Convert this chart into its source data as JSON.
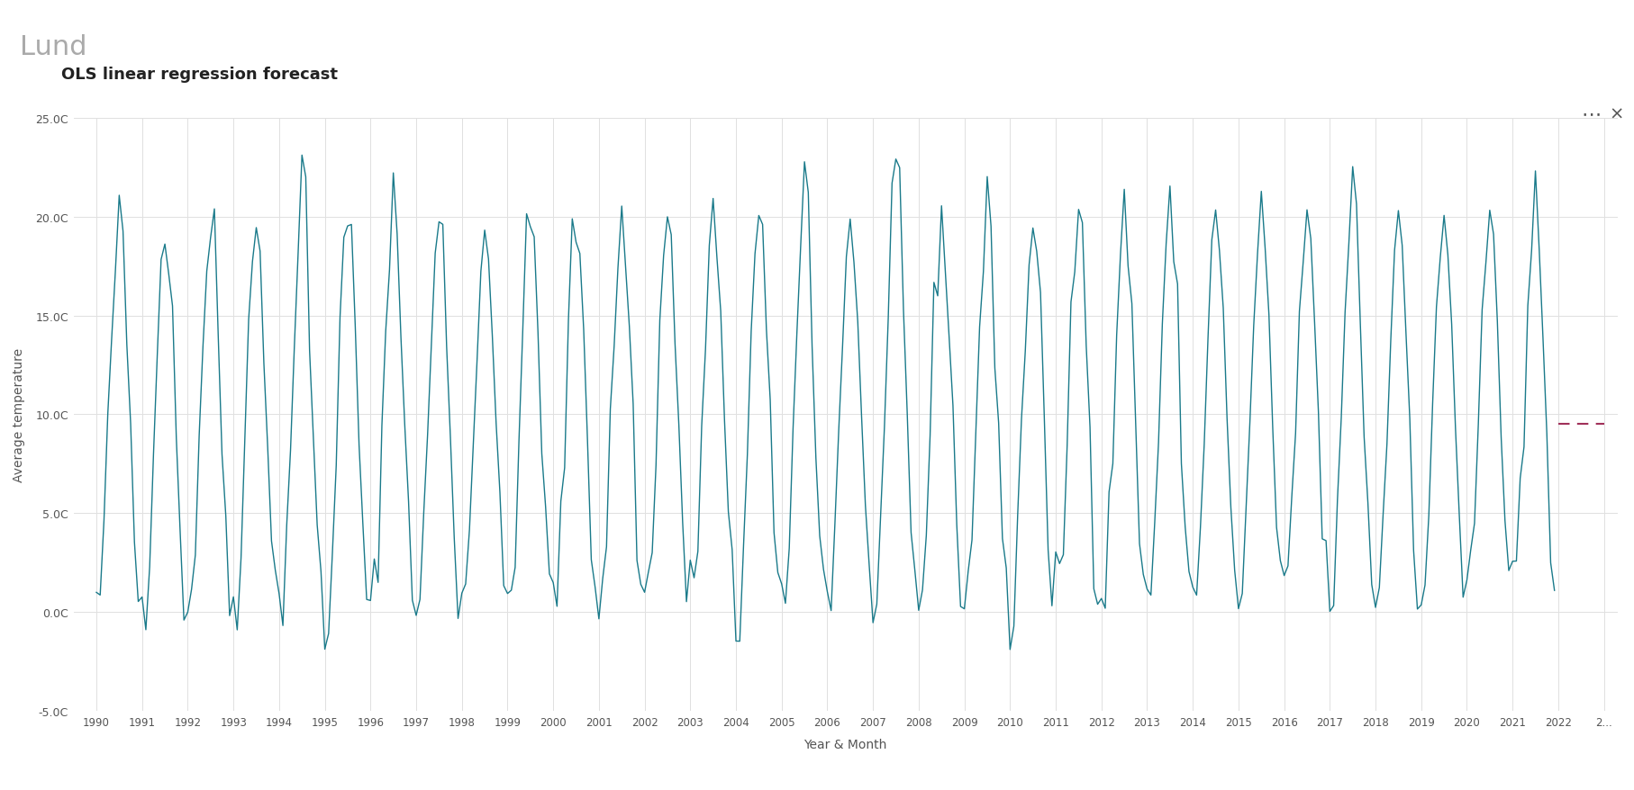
{
  "title": "OLS linear regression forecast",
  "header": "Lund",
  "xlabel": "Year & Month",
  "ylabel": "Average temperature",
  "ylim": [
    -5,
    25
  ],
  "yticks": [
    -5.0,
    0.0,
    5.0,
    10.0,
    15.0,
    20.0,
    25.0
  ],
  "ytick_labels": [
    "-5.0C",
    "0.0C",
    "5.0C",
    "10.0C",
    "15.0C",
    "20.0C",
    "25.0C"
  ],
  "line_color": "#1a7a8a",
  "forecast_color": "#a0305a",
  "background_color": "#ffffff",
  "header_bg": "#f0f0f0",
  "grid_color": "#e0e0e0",
  "start_year": 1990,
  "end_year": 2022,
  "forecast_value": 9.5
}
